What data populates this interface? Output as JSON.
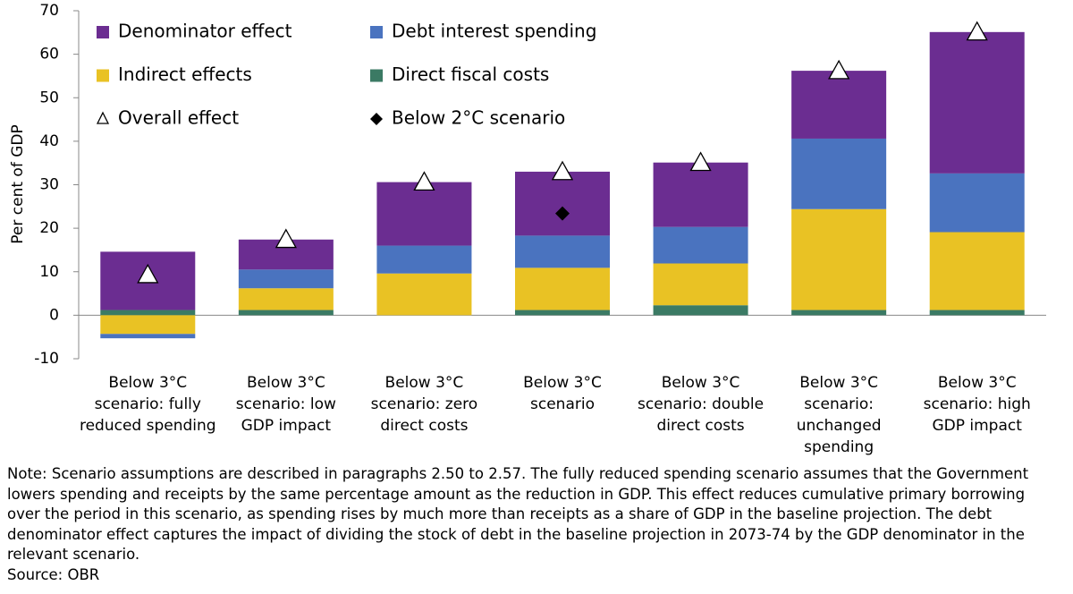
{
  "chart_data": {
    "type": "stacked-bar",
    "y_label": "Per cent of GDP",
    "categories": [
      "Below 3°C\nscenario: fully\nreduced spending",
      "Below 3°C\nscenario: low\nGDP impact",
      "Below 3°C\nscenario: zero\ndirect costs",
      "Below 3°C\nscenario",
      "Below 3°C\nscenario: double\ndirect costs",
      "Below 3°C\nscenario:\nunchanged\nspending",
      "Below 3°C\nscenario: high\nGDP impact"
    ],
    "series": [
      {
        "name": "Denominator effect",
        "color": "#6b2d91",
        "values": [
          13.4,
          6.9,
          14.6,
          14.7,
          14.8,
          15.6,
          32.5
        ]
      },
      {
        "name": "Debt interest spending",
        "color": "#4a73bf",
        "values": [
          -1.0,
          4.3,
          6.4,
          7.4,
          8.4,
          16.2,
          13.5
        ]
      },
      {
        "name": "Indirect effects",
        "color": "#e9c224",
        "values": [
          -4.3,
          5.0,
          9.6,
          9.7,
          9.6,
          23.2,
          17.9
        ]
      },
      {
        "name": "Direct fiscal costs",
        "color": "#3b7a64",
        "values": [
          1.2,
          1.2,
          0,
          1.2,
          2.3,
          1.2,
          1.2
        ]
      }
    ],
    "markers": [
      {
        "name": "Overall effect",
        "symbol": "triangle",
        "color": "#ffffff",
        "values": [
          9.3,
          17.4,
          30.6,
          33.0,
          35.1,
          56.2,
          65.1
        ]
      },
      {
        "name": "Below 2°C scenario",
        "symbol": "diamond",
        "color": "#000000",
        "values": [
          null,
          null,
          null,
          23.4,
          null,
          null,
          null
        ]
      }
    ],
    "ylim": [
      -10,
      70
    ],
    "yticks": [
      -10,
      0,
      10,
      20,
      30,
      40,
      50,
      60,
      70
    ],
    "note": "Note: Scenario assumptions are described in paragraphs 2.50 to 2.57. The fully reduced spending scenario assumes that the Government lowers spending and receipts by the same percentage amount as the reduction in GDP. This effect reduces cumulative primary borrowing over the period in this scenario, as spending rises by much more than receipts as a share of GDP in the baseline projection. The debt denominator effect captures the impact of dividing the stock of debt in the baseline projection in 2073-74 by the GDP denominator in the relevant scenario.",
    "source": "Source: OBR"
  }
}
